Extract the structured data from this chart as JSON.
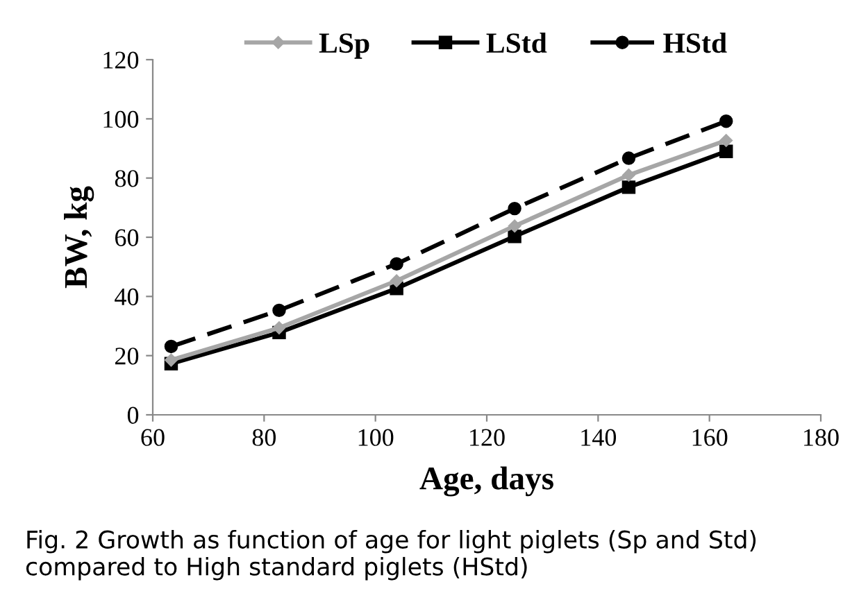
{
  "chart_data": {
    "type": "line",
    "xlabel": "Age, days",
    "ylabel": "BW, kg",
    "x": [
      63.3,
      82.7,
      103.8,
      125,
      145.5,
      163
    ],
    "series": [
      {
        "name": "LSp",
        "color": "#a6a6a6",
        "values": [
          18.5,
          29.4,
          45.3,
          63.8,
          81,
          92.7
        ],
        "marker": "diamond",
        "line_style": "solid"
      },
      {
        "name": "LStd",
        "color": "#000000",
        "values": [
          17.3,
          27.8,
          42.7,
          60.3,
          76.9,
          89
        ],
        "marker": "square",
        "line_style": "solid"
      },
      {
        "name": "HStd",
        "color": "#000000",
        "values": [
          23.1,
          35.3,
          51,
          69.7,
          86.7,
          99.2
        ],
        "marker": "circle",
        "line_style": "dashed"
      }
    ],
    "xlim": [
      60,
      180
    ],
    "xticks": [
      60,
      80,
      100,
      120,
      140,
      160,
      180
    ],
    "ylim": [
      0,
      120
    ],
    "yticks": [
      0,
      20,
      40,
      60,
      80,
      100,
      120
    ],
    "grid": false,
    "legend": "top",
    "annotations": [
      "Fig. 2 Growth as function of age for light piglets (Sp and Std) compared to High standard piglets (HStd)"
    ]
  }
}
